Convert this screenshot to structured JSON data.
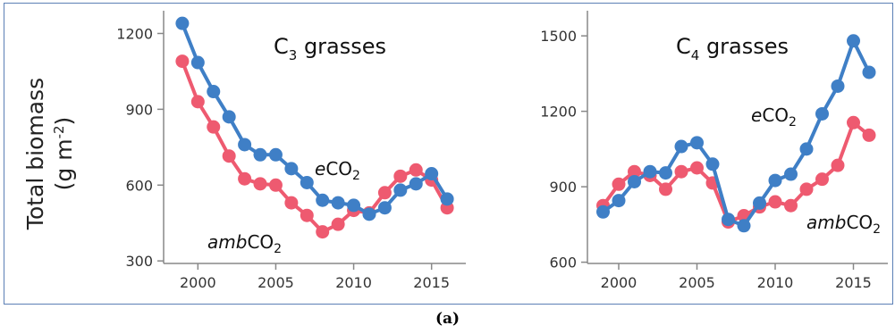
{
  "caption": "(a)",
  "y_axis_label_line1": "Total biomass",
  "y_axis_label_line2_pre": "(g m",
  "y_axis_label_line2_sup": "-2",
  "y_axis_label_line2_post": ")",
  "colors": {
    "eCO2": "#3f7fc6",
    "ambCO2": "#ee5a70",
    "frame": "#5b7fb5",
    "axis": "#888888"
  },
  "chart_data": [
    {
      "type": "line",
      "title": {
        "pre": "C",
        "sub": "3",
        "post": " grasses"
      },
      "x_ticks": [
        2000,
        2005,
        2010,
        2015
      ],
      "y_ticks": [
        300,
        600,
        900,
        1200
      ],
      "xlim": [
        1997.8,
        2017.2
      ],
      "ylim": [
        290,
        1290
      ],
      "series": [
        {
          "key": "eCO2",
          "label": {
            "italic": "e",
            "main": "CO",
            "sub": "2"
          },
          "x": [
            1999,
            2000,
            2001,
            2002,
            2003,
            2004,
            2005,
            2006,
            2007,
            2008,
            2009,
            2010,
            2011,
            2012,
            2013,
            2014,
            2015,
            2016
          ],
          "values": [
            1240,
            1085,
            970,
            870,
            760,
            720,
            720,
            665,
            610,
            540,
            530,
            520,
            485,
            510,
            580,
            605,
            645,
            545
          ]
        },
        {
          "key": "ambCO2",
          "label": {
            "italic": "amb",
            "main": "CO",
            "sub": "2"
          },
          "x": [
            1999,
            2000,
            2001,
            2002,
            2003,
            2004,
            2005,
            2006,
            2007,
            2008,
            2009,
            2010,
            2011,
            2012,
            2013,
            2014,
            2015,
            2016
          ],
          "values": [
            1090,
            930,
            830,
            715,
            625,
            605,
            600,
            530,
            480,
            415,
            445,
            500,
            490,
            570,
            635,
            660,
            620,
            510
          ]
        }
      ]
    },
    {
      "type": "line",
      "title": {
        "pre": "C",
        "sub": "4",
        "post": " grasses"
      },
      "x_ticks": [
        2000,
        2005,
        2010,
        2015
      ],
      "y_ticks": [
        600,
        900,
        1200,
        1500
      ],
      "xlim": [
        1998,
        2017.2
      ],
      "ylim": [
        595,
        1600
      ],
      "series": [
        {
          "key": "eCO2",
          "label": {
            "italic": "e",
            "main": "CO",
            "sub": "2"
          },
          "x": [
            1999,
            2000,
            2001,
            2002,
            2003,
            2004,
            2005,
            2006,
            2007,
            2008,
            2009,
            2010,
            2011,
            2012,
            2013,
            2014,
            2015,
            2016
          ],
          "values": [
            800,
            845,
            920,
            960,
            955,
            1060,
            1075,
            990,
            770,
            745,
            835,
            925,
            950,
            1050,
            1190,
            1300,
            1480,
            1355
          ]
        },
        {
          "key": "ambCO2",
          "label": {
            "italic": "amb",
            "main": "CO",
            "sub": "2"
          },
          "x": [
            1999,
            2000,
            2001,
            2002,
            2003,
            2004,
            2005,
            2006,
            2007,
            2008,
            2009,
            2010,
            2011,
            2012,
            2013,
            2014,
            2015,
            2016
          ],
          "values": [
            825,
            910,
            960,
            945,
            890,
            960,
            975,
            915,
            760,
            785,
            820,
            840,
            825,
            890,
            930,
            985,
            1155,
            1105
          ]
        }
      ]
    }
  ]
}
